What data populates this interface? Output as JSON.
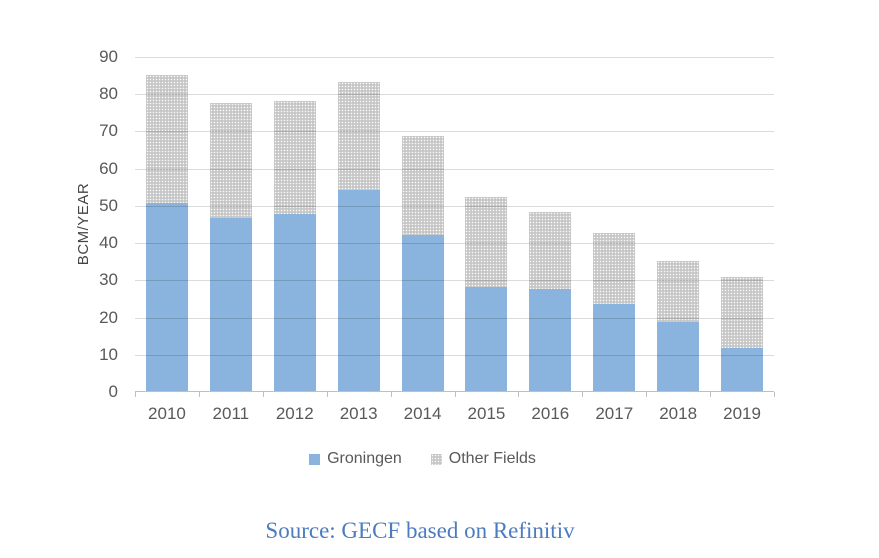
{
  "chart_data": {
    "type": "bar",
    "stacked": true,
    "title": "",
    "xlabel": "",
    "ylabel": "BCM/YEAR",
    "categories": [
      "2010",
      "2011",
      "2012",
      "2013",
      "2014",
      "2015",
      "2016",
      "2017",
      "2018",
      "2019"
    ],
    "series": [
      {
        "name": "Groningen",
        "color": "#8AB4DE",
        "pattern": "solid",
        "values": [
          50.5,
          46.5,
          47.5,
          54,
          42,
          28,
          27.5,
          23.5,
          18.5,
          11.5
        ]
      },
      {
        "name": "Other Fields",
        "color": "#C6C6C6",
        "pattern": "dotted",
        "values": [
          34.5,
          31,
          30.5,
          29,
          26.5,
          24,
          20.5,
          19,
          16.5,
          19
        ]
      }
    ],
    "totals": [
      85,
      77.5,
      78,
      83,
      68.5,
      52,
      48,
      42.5,
      35,
      30.5
    ],
    "ylim": [
      0,
      90
    ],
    "yticks": [
      0,
      10,
      20,
      30,
      40,
      50,
      60,
      70,
      80,
      90
    ],
    "grid": "horizontal",
    "legend_position": "bottom"
  },
  "colors": {
    "groningen_blue": "#8AB4DE",
    "other_fields_gray": "#C6C6C6",
    "gridline": "#D9D9D9",
    "axis_line": "#BFBFBF",
    "tick_text": "#595959",
    "source_text": "#4D7CBE"
  },
  "source": {
    "text": "Source: GECF based on Refinitiv"
  }
}
